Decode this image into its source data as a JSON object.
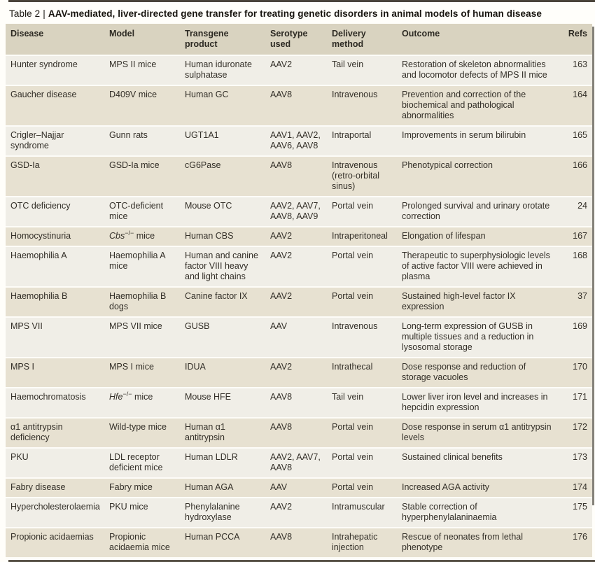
{
  "colors": {
    "page_bg": "#fffefa",
    "header_bg": "#d9d3c0",
    "row_light": "#f0eee7",
    "row_dark": "#e7e1d1",
    "rule_dark": "#4a443a",
    "edge_line": "#6f6b62",
    "text": "#332f28"
  },
  "table": {
    "label": "Table 2",
    "separator": "|",
    "title": "AAV-mediated, liver-directed gene transfer for treating genetic disorders in animal models of human disease",
    "columns": [
      "Disease",
      "Model",
      "Transgene product",
      "Serotype used",
      "Delivery method",
      "Outcome",
      "Refs"
    ],
    "rows": [
      {
        "disease": "Hunter syndrome",
        "model": "MPS II mice",
        "transgene": "Human iduronate sulphatase",
        "serotype": "AAV2",
        "delivery": "Tail vein",
        "outcome": "Restoration of skeleton abnormalities and locomotor defects of MPS II mice",
        "refs": "163"
      },
      {
        "disease": "Gaucher disease",
        "model": "D409V mice",
        "transgene": "Human GC",
        "serotype": "AAV8",
        "delivery": "Intravenous",
        "outcome": "Prevention and correction of the biochemical and pathological abnormalities",
        "refs": "164"
      },
      {
        "disease": "Crigler–Najjar syndrome",
        "model": "Gunn rats",
        "transgene": "UGT1A1",
        "serotype": "AAV1, AAV2, AAV6, AAV8",
        "delivery": "Intraportal",
        "outcome": "Improvements in serum bilirubin",
        "refs": "165"
      },
      {
        "disease": "GSD-Ia",
        "model": "GSD-Ia mice",
        "transgene": "cG6Pase",
        "serotype": "AAV8",
        "delivery": "Intravenous (retro-orbital sinus)",
        "outcome": "Phenotypical correction",
        "refs": "166"
      },
      {
        "disease": "OTC deficiency",
        "model": "OTC-deficient mice",
        "transgene": "Mouse OTC",
        "serotype": "AAV2, AAV7, AAV8, AAV9",
        "delivery": "Portal vein",
        "outcome": "Prolonged survival and urinary orotate correction",
        "refs": "24"
      },
      {
        "disease": "Homocystinuria",
        "model": {
          "i": "Cbs",
          "sup": "−/−",
          "text": " mice"
        },
        "transgene": "Human CBS",
        "serotype": "AAV2",
        "delivery": "Intraperitoneal",
        "outcome": "Elongation of lifespan",
        "refs": "167"
      },
      {
        "disease": "Haemophilia A",
        "model": "Haemophilia A mice",
        "transgene": "Human and canine factor VIII heavy and light chains",
        "serotype": "AAV2",
        "delivery": "Portal vein",
        "outcome": "Therapeutic to superphysiologic levels of active factor VIII were achieved in plasma",
        "refs": "168"
      },
      {
        "disease": "Haemophilia B",
        "model": "Haemophilia B dogs",
        "transgene": "Canine factor IX",
        "serotype": "AAV2",
        "delivery": "Portal vein",
        "outcome": "Sustained high-level factor IX expression",
        "refs": "37"
      },
      {
        "disease": "MPS VII",
        "model": "MPS VII mice",
        "transgene": "GUSB",
        "serotype": "AAV",
        "delivery": "Intravenous",
        "outcome": "Long-term expression of GUSB in multiple tissues and a reduction in lysosomal storage",
        "refs": "169"
      },
      {
        "disease": "MPS I",
        "model": "MPS I mice",
        "transgene": "IDUA",
        "serotype": "AAV2",
        "delivery": "Intrathecal",
        "outcome": "Dose response and reduction of storage vacuoles",
        "refs": "170"
      },
      {
        "disease": "Haemochromatosis",
        "model": {
          "i": "Hfe",
          "sup": "−/−",
          "text": " mice"
        },
        "transgene": "Mouse HFE",
        "serotype": "AAV8",
        "delivery": "Tail vein",
        "outcome": "Lower liver iron level and increases in hepcidin expression",
        "refs": "171"
      },
      {
        "disease": "α1 antitrypsin deficiency",
        "model": "Wild-type mice",
        "transgene": "Human α1 antitrypsin",
        "serotype": "AAV8",
        "delivery": "Portal vein",
        "outcome": "Dose response in serum α1 antitrypsin levels",
        "refs": "172"
      },
      {
        "disease": "PKU",
        "model": "LDL receptor deficient mice",
        "transgene": "Human LDLR",
        "serotype": "AAV2, AAV7, AAV8",
        "delivery": "Portal vein",
        "outcome": "Sustained clinical benefits",
        "refs": "173"
      },
      {
        "disease": "Fabry disease",
        "model": "Fabry mice",
        "transgene": "Human AGA",
        "serotype": "AAV",
        "delivery": "Portal vein",
        "outcome": "Increased AGA activity",
        "refs": "174"
      },
      {
        "disease": "Hypercholesterolaemia",
        "model": "PKU mice",
        "transgene": "Phenylalanine hydroxylase",
        "serotype": "AAV2",
        "delivery": "Intramuscular",
        "outcome": "Stable correction of hyperphenylalaninaemia",
        "refs": "175"
      },
      {
        "disease": "Propionic acidaemias",
        "model": "Propionic acidaemia mice",
        "transgene": "Human PCCA",
        "serotype": "AAV8",
        "delivery": "Intrahepatic injection",
        "outcome": "Rescue of neonates from lethal phenotype",
        "refs": "176"
      }
    ]
  }
}
